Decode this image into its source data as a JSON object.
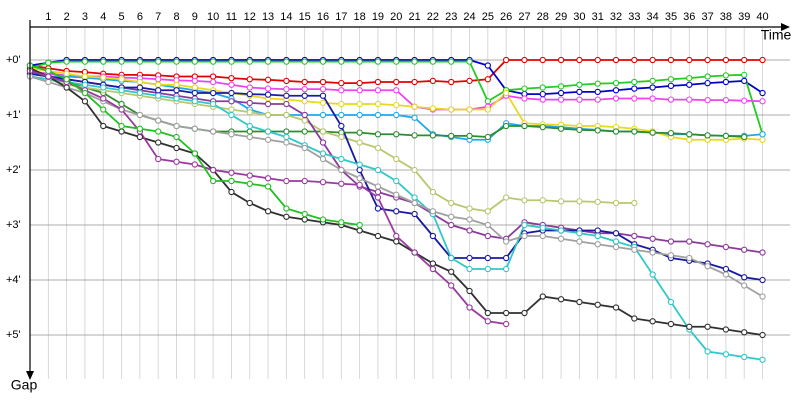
{
  "chart_data": {
    "type": "line",
    "x_label": "Time",
    "y_label": "Gap",
    "x": [
      0,
      1,
      2,
      3,
      4,
      5,
      6,
      7,
      8,
      9,
      10,
      11,
      12,
      13,
      14,
      15,
      16,
      17,
      18,
      19,
      20,
      21,
      22,
      23,
      24,
      25,
      26,
      27,
      28,
      29,
      30,
      31,
      32,
      33,
      34,
      35,
      36,
      37,
      38,
      39,
      40
    ],
    "xlim": [
      0,
      41.5
    ],
    "xticks": [
      1,
      2,
      3,
      4,
      5,
      6,
      7,
      8,
      9,
      10,
      11,
      12,
      13,
      14,
      15,
      16,
      17,
      18,
      19,
      20,
      21,
      22,
      23,
      24,
      25,
      26,
      27,
      28,
      29,
      30,
      31,
      32,
      33,
      34,
      35,
      36,
      37,
      38,
      39,
      40
    ],
    "ylim": [
      -0.6,
      5.8
    ],
    "yticks": [
      {
        "value": 0,
        "label": "+0'"
      },
      {
        "value": 1,
        "label": "+1'"
      },
      {
        "value": 2,
        "label": "+2'"
      },
      {
        "value": 3,
        "label": "+3'"
      },
      {
        "value": 4,
        "label": "+4'"
      },
      {
        "value": 5,
        "label": "+5'"
      }
    ],
    "grid": true,
    "series": [
      {
        "color": "#e00000",
        "values": [
          0.1,
          0.15,
          0.2,
          0.22,
          0.25,
          0.27,
          0.27,
          0.28,
          0.3,
          0.3,
          0.3,
          0.33,
          0.35,
          0.36,
          0.38,
          0.4,
          0.4,
          0.42,
          0.42,
          0.4,
          0.4,
          0.4,
          0.38,
          0.4,
          0.38,
          0.35,
          0,
          0,
          0,
          0,
          0,
          0,
          0,
          0,
          0,
          0,
          0,
          0,
          0,
          0,
          0
        ]
      },
      {
        "color": "#0000cc",
        "values": [
          0.1,
          0.05,
          0,
          0,
          0,
          0,
          0,
          0,
          0,
          0,
          0,
          0,
          0,
          0,
          0,
          0,
          0,
          0,
          0,
          0,
          0,
          0,
          0,
          0,
          0,
          0.1,
          0.55,
          0.62,
          0.62,
          0.6,
          0.58,
          0.58,
          0.55,
          0.52,
          0.5,
          0.47,
          0.45,
          0.42,
          0.4,
          0.38,
          0.6
        ]
      },
      {
        "color": "#22cc22",
        "values": [
          0.15,
          0.05,
          0.03,
          0.03,
          0.03,
          0.03,
          0.03,
          0.03,
          0.03,
          0.03,
          0.03,
          0.03,
          0.03,
          0.03,
          0.03,
          0.03,
          0.03,
          0.03,
          0.03,
          0.03,
          0.03,
          0.03,
          0.03,
          0.03,
          0.03,
          0.75,
          0.55,
          0.52,
          0.5,
          0.48,
          0.45,
          0.43,
          0.42,
          0.4,
          0.38,
          0.35,
          0.33,
          0.3,
          0.28,
          0.27,
          1.35
        ]
      },
      {
        "color": "#ee44ee",
        "values": [
          0.2,
          0.25,
          0.28,
          0.3,
          0.3,
          0.32,
          0.33,
          0.35,
          0.37,
          0.38,
          0.4,
          0.45,
          0.5,
          0.52,
          0.53,
          0.53,
          0.53,
          0.55,
          0.55,
          0.55,
          0.55,
          0.85,
          0.9,
          0.9,
          0.9,
          0.85,
          0.65,
          0.7,
          0.72,
          0.72,
          0.72,
          0.72,
          0.7,
          0.7,
          0.7,
          0.72,
          0.72,
          0.73,
          0.73,
          0.74,
          0.75
        ]
      },
      {
        "color": "#22a8e8",
        "values": [
          0.25,
          0.3,
          0.3,
          0.32,
          0.35,
          0.38,
          0.4,
          0.45,
          0.5,
          0.55,
          0.6,
          0.7,
          0.9,
          1.0,
          1.0,
          1.0,
          1.0,
          1.0,
          1.0,
          1.0,
          1.0,
          1.05,
          1.35,
          1.4,
          1.45,
          1.45,
          1.15,
          1.2,
          1.2,
          1.22,
          1.25,
          1.27,
          1.3,
          1.3,
          1.32,
          1.35,
          1.35,
          1.37,
          1.38,
          1.38,
          1.35
        ]
      },
      {
        "color": "#e8d820",
        "values": [
          0.15,
          0.2,
          0.25,
          0.3,
          0.32,
          0.35,
          0.4,
          0.45,
          0.45,
          0.5,
          0.55,
          0.6,
          0.65,
          0.7,
          0.72,
          0.75,
          0.78,
          0.8,
          0.8,
          0.8,
          0.82,
          0.85,
          0.88,
          0.9,
          0.9,
          0.9,
          0.6,
          1.15,
          1.17,
          1.18,
          1.2,
          1.2,
          1.22,
          1.25,
          1.3,
          1.4,
          1.45,
          1.45,
          1.45,
          1.43,
          1.45
        ]
      },
      {
        "color": "#2e8b2e",
        "values": [
          0.2,
          0.3,
          0.4,
          0.5,
          0.6,
          0.8,
          1.0,
          1.1,
          1.2,
          1.25,
          1.3,
          1.3,
          1.3,
          1.3,
          1.3,
          1.3,
          1.3,
          1.32,
          1.32,
          1.35,
          1.35,
          1.37,
          1.37,
          1.38,
          1.38,
          1.4,
          1.2,
          1.2,
          1.22,
          1.25,
          1.27,
          1.28,
          1.3,
          1.3,
          1.32,
          1.33,
          1.35,
          1.37,
          1.38,
          1.4,
          null
        ]
      },
      {
        "color": "#b8c870",
        "values": [
          0.3,
          0.35,
          0.45,
          0.5,
          0.55,
          0.6,
          0.65,
          0.7,
          0.75,
          0.8,
          0.85,
          0.9,
          0.95,
          1.0,
          1.0,
          1.1,
          1.3,
          1.4,
          1.5,
          1.6,
          1.8,
          2.0,
          2.4,
          2.6,
          2.7,
          2.75,
          2.5,
          2.55,
          2.55,
          2.57,
          2.57,
          2.58,
          2.6,
          2.6,
          null,
          null,
          null,
          null,
          null,
          null,
          null
        ]
      },
      {
        "color": "#8b3a9b",
        "values": [
          0.25,
          0.3,
          0.35,
          0.4,
          0.45,
          0.5,
          0.55,
          0.6,
          0.65,
          0.7,
          0.75,
          0.75,
          0.78,
          0.8,
          0.8,
          1.0,
          1.5,
          2.0,
          2.3,
          2.4,
          2.5,
          2.6,
          2.8,
          3.0,
          3.1,
          3.2,
          3.25,
          2.95,
          3.0,
          3.05,
          3.1,
          3.15,
          3.15,
          3.2,
          3.25,
          3.3,
          3.3,
          3.35,
          3.4,
          3.45,
          3.5
        ]
      },
      {
        "color": "#1a1aa0",
        "values": [
          0.25,
          0.3,
          0.35,
          0.4,
          0.45,
          0.5,
          0.5,
          0.55,
          0.55,
          0.6,
          0.6,
          0.6,
          0.62,
          0.63,
          0.65,
          0.65,
          0.65,
          1.2,
          2.0,
          2.7,
          2.75,
          2.8,
          3.2,
          3.6,
          3.6,
          3.6,
          3.6,
          3.15,
          3.1,
          3.1,
          3.1,
          3.1,
          3.15,
          3.35,
          3.45,
          3.6,
          3.65,
          3.7,
          3.8,
          3.95,
          4.0
        ]
      },
      {
        "color": "#30c8c8",
        "values": [
          0.3,
          0.35,
          0.4,
          0.45,
          0.5,
          0.55,
          0.6,
          0.65,
          0.7,
          0.75,
          0.8,
          1.0,
          1.2,
          1.3,
          1.4,
          1.55,
          1.7,
          1.8,
          1.9,
          2.0,
          2.2,
          2.5,
          2.8,
          3.6,
          3.8,
          3.8,
          3.8,
          3.0,
          3.05,
          3.1,
          3.15,
          3.2,
          3.3,
          3.4,
          3.9,
          4.4,
          4.9,
          5.3,
          5.35,
          5.4,
          5.45
        ]
      },
      {
        "color": "#a0a0a0",
        "values": [
          0.3,
          0.4,
          0.5,
          0.6,
          0.75,
          0.9,
          1.0,
          1.1,
          1.2,
          1.25,
          1.3,
          1.35,
          1.4,
          1.45,
          1.5,
          1.6,
          1.8,
          2.0,
          2.15,
          2.3,
          2.45,
          2.6,
          2.75,
          2.85,
          2.9,
          3.0,
          3.3,
          3.2,
          3.2,
          3.25,
          3.3,
          3.35,
          3.4,
          3.45,
          3.5,
          3.55,
          3.6,
          3.75,
          3.9,
          4.1,
          4.3
        ]
      },
      {
        "color": "#303030",
        "values": [
          0.15,
          0.3,
          0.5,
          0.75,
          1.2,
          1.3,
          1.4,
          1.5,
          1.6,
          1.7,
          2.0,
          2.4,
          2.6,
          2.75,
          2.85,
          2.9,
          2.95,
          3.0,
          3.1,
          3.2,
          3.3,
          3.5,
          3.7,
          3.85,
          4.2,
          4.6,
          4.6,
          4.6,
          4.3,
          4.35,
          4.4,
          4.45,
          4.5,
          4.7,
          4.75,
          4.8,
          4.85,
          4.85,
          4.9,
          4.95,
          5.0
        ]
      },
      {
        "color": "#9a3aa0",
        "values": [
          0.2,
          0.3,
          0.4,
          0.55,
          0.7,
          0.9,
          1.3,
          1.8,
          1.85,
          1.9,
          2.0,
          2.05,
          2.1,
          2.15,
          2.2,
          2.2,
          2.22,
          2.25,
          2.27,
          2.5,
          3.2,
          3.5,
          3.8,
          4.1,
          4.5,
          4.75,
          4.8,
          null,
          null,
          null,
          null,
          null,
          null,
          null,
          null,
          null,
          null,
          null,
          null,
          null,
          null
        ]
      },
      {
        "color": "#20c020",
        "values": [
          0.1,
          0.2,
          0.35,
          0.6,
          0.9,
          1.2,
          1.25,
          1.3,
          1.4,
          1.7,
          2.2,
          2.2,
          2.25,
          2.3,
          2.7,
          2.8,
          2.9,
          2.95,
          3.0,
          null,
          null,
          null,
          null,
          null,
          null,
          null,
          null,
          null,
          null,
          null,
          null,
          null,
          null,
          null,
          null,
          null,
          null,
          null,
          null,
          null,
          null
        ]
      }
    ]
  }
}
